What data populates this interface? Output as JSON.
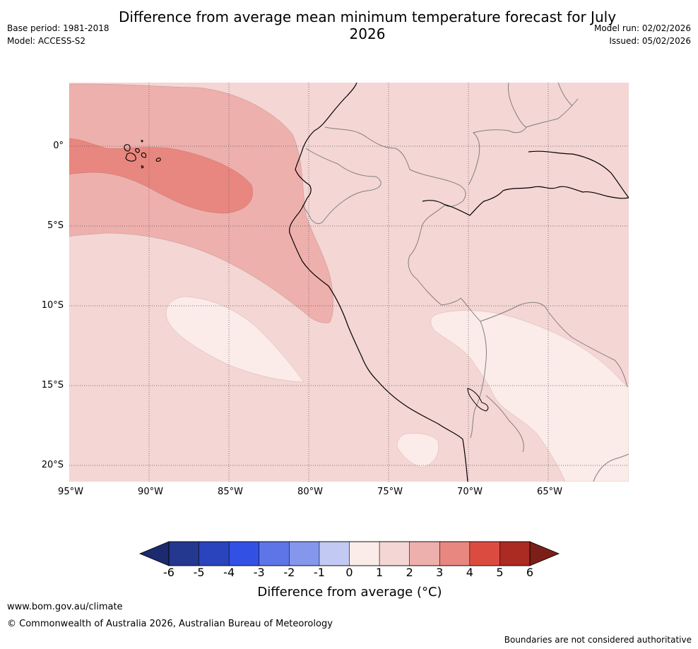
{
  "title": "Difference from average mean minimum temperature forecast for July 2026",
  "meta_left": {
    "base_period": "Base period: 1981-2018",
    "model": "Model: ACCESS-S2"
  },
  "meta_right": {
    "model_run": "Model run: 02/02/2026",
    "issued": "Issued: 05/02/2026"
  },
  "map": {
    "lat_labels": [
      "0°",
      "5°S",
      "10°S",
      "15°S",
      "20°S"
    ],
    "lon_labels": [
      "95°W",
      "90°W",
      "85°W",
      "80°W",
      "75°W",
      "70°W",
      "65°W"
    ],
    "colors": {
      "base": "#f4d6d4",
      "anomaly_2_3": "#eeb0ad",
      "anomaly_3_4": "#e8877f",
      "anomaly_1_2": "#fbebe9",
      "coast": "#000000",
      "border": "#808080",
      "grid": "#555555"
    }
  },
  "colorbar": {
    "ticks": [
      "-6",
      "-5",
      "-4",
      "-3",
      "-2",
      "-1",
      "0",
      "1",
      "2",
      "3",
      "4",
      "5",
      "6"
    ],
    "colors": [
      "#25388f",
      "#2a44bd",
      "#3251e4",
      "#5d75e6",
      "#8597ec",
      "#c2c9f3",
      "#e8eafb",
      "#fbebe9",
      "#f4d6d4",
      "#eeb0ad",
      "#e8877f",
      "#db4b40",
      "#ab2a22"
    ],
    "under_color": "#1c2a6e",
    "over_color": "#7b1f18",
    "label": "Difference from average (°C)"
  },
  "footer": {
    "url": "www.bom.gov.au/climate",
    "copyright": "© Commonwealth of Australia 2026, Australian Bureau of Meteorology",
    "disclaimer": "Boundaries are not considered authoritative"
  }
}
